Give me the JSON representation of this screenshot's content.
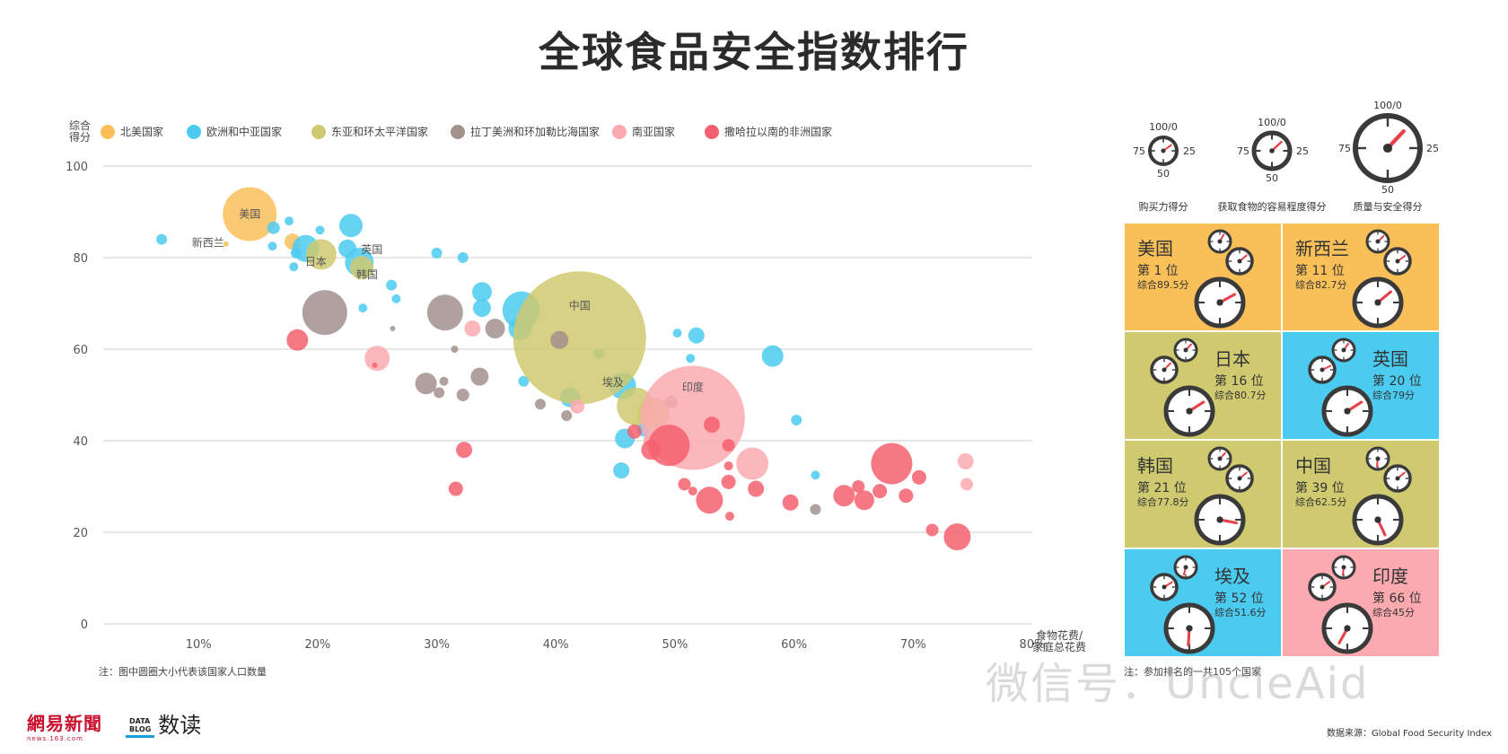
{
  "title": "全球食品安全指数排行",
  "legend_title": "综合\n得分",
  "colors": {
    "north_america": "#f9c05a",
    "europe_central_asia": "#4ccbf0",
    "east_asia_pacific": "#cfc970",
    "latin_caribbean": "#a3918d",
    "south_asia": "#fcaab0",
    "sub_saharan": "#f4606f"
  },
  "chart_data": {
    "type": "scatter",
    "title": "全球食品安全指数排行",
    "xlabel": "食物花费/\n家庭总花费",
    "ylabel": "综合\n得分",
    "xlim": [
      2,
      80
    ],
    "ylim": [
      0,
      100
    ],
    "x_ticks": [
      "10%",
      "20%",
      "30%",
      "40%",
      "50%",
      "60%",
      "70%",
      "80%"
    ],
    "x_tick_values": [
      10,
      20,
      30,
      40,
      50,
      60,
      70,
      80
    ],
    "y_ticks": [
      "0",
      "20",
      "40",
      "60",
      "80",
      "100"
    ],
    "y_tick_values": [
      0,
      20,
      40,
      60,
      80,
      100
    ],
    "grid": true,
    "legend_position": "top",
    "size_meaning": "population",
    "series": [
      {
        "name": "北美国家",
        "color": "#f9c05a",
        "points": [
          {
            "x": 14.3,
            "y": 89.5,
            "r": 30,
            "label": "美国"
          },
          {
            "x": 17.9,
            "y": 83.5,
            "r": 9
          },
          {
            "x": 12.3,
            "y": 83,
            "r": 3
          }
        ]
      },
      {
        "name": "欧洲和中亚国家",
        "color": "#4ccbf0",
        "points": [
          {
            "x": 19.0,
            "y": 82,
            "r": 15
          },
          {
            "x": 22.8,
            "y": 87,
            "r": 13
          },
          {
            "x": 23.5,
            "y": 79,
            "r": 16,
            "label": "英国"
          },
          {
            "x": 22.5,
            "y": 82,
            "r": 10
          },
          {
            "x": 16.3,
            "y": 86.5,
            "r": 7
          },
          {
            "x": 17.6,
            "y": 88,
            "r": 5
          },
          {
            "x": 20.2,
            "y": 86,
            "r": 5
          },
          {
            "x": 18.2,
            "y": 81,
            "r": 6
          },
          {
            "x": 6.9,
            "y": 84,
            "r": 6
          },
          {
            "x": 16.2,
            "y": 82.5,
            "r": 5
          },
          {
            "x": 18.0,
            "y": 78,
            "r": 5
          },
          {
            "x": 23.8,
            "y": 69,
            "r": 5
          },
          {
            "x": 26.2,
            "y": 74,
            "r": 6
          },
          {
            "x": 26.6,
            "y": 71,
            "r": 5
          },
          {
            "x": 30.0,
            "y": 81,
            "r": 6
          },
          {
            "x": 32.2,
            "y": 80,
            "r": 6
          },
          {
            "x": 33.8,
            "y": 72.5,
            "r": 11
          },
          {
            "x": 33.8,
            "y": 69,
            "r": 10
          },
          {
            "x": 37.1,
            "y": 68.5,
            "r": 21
          },
          {
            "x": 37.0,
            "y": 64.5,
            "r": 13
          },
          {
            "x": 37.3,
            "y": 53,
            "r": 6
          },
          {
            "x": 41.2,
            "y": 49.5,
            "r": 11
          },
          {
            "x": 43.6,
            "y": 59,
            "r": 6
          },
          {
            "x": 45.6,
            "y": 52,
            "r": 15
          },
          {
            "x": 45.8,
            "y": 40.5,
            "r": 11
          },
          {
            "x": 45.5,
            "y": 33.5,
            "r": 9
          },
          {
            "x": 47.4,
            "y": 42.5,
            "r": 8
          },
          {
            "x": 50.2,
            "y": 63.5,
            "r": 5
          },
          {
            "x": 51.3,
            "y": 58,
            "r": 5
          },
          {
            "x": 51.8,
            "y": 63,
            "r": 9
          },
          {
            "x": 58.2,
            "y": 58.5,
            "r": 12
          },
          {
            "x": 60.2,
            "y": 44.5,
            "r": 6
          },
          {
            "x": 61.8,
            "y": 32.5,
            "r": 5
          }
        ]
      },
      {
        "name": "东亚和环太平洋国家",
        "color": "#cfc970",
        "points": [
          {
            "x": 42.0,
            "y": 62.5,
            "r": 74,
            "label": "中国"
          },
          {
            "x": 20.3,
            "y": 80.7,
            "r": 17,
            "label": "日本"
          },
          {
            "x": 23.7,
            "y": 77.8,
            "r": 13,
            "label": "韩国"
          },
          {
            "x": 46.7,
            "y": 47.5,
            "r": 21
          },
          {
            "x": 48.2,
            "y": 46,
            "r": 18
          }
        ]
      },
      {
        "name": "拉丁美洲和环加勒比海国家",
        "color": "#a3918d",
        "points": [
          {
            "x": 20.6,
            "y": 68,
            "r": 25
          },
          {
            "x": 30.7,
            "y": 68,
            "r": 20
          },
          {
            "x": 34.9,
            "y": 64.5,
            "r": 11
          },
          {
            "x": 40.3,
            "y": 62,
            "r": 10
          },
          {
            "x": 29.1,
            "y": 52.5,
            "r": 12
          },
          {
            "x": 32.2,
            "y": 50,
            "r": 7
          },
          {
            "x": 30.2,
            "y": 50.5,
            "r": 6
          },
          {
            "x": 33.6,
            "y": 54,
            "r": 10
          },
          {
            "x": 38.7,
            "y": 48,
            "r": 6
          },
          {
            "x": 40.9,
            "y": 45.5,
            "r": 6
          },
          {
            "x": 30.6,
            "y": 53,
            "r": 5
          },
          {
            "x": 31.5,
            "y": 60,
            "r": 4
          },
          {
            "x": 26.3,
            "y": 64.5,
            "r": 3
          },
          {
            "x": 49.7,
            "y": 48.5,
            "r": 7
          },
          {
            "x": 61.8,
            "y": 25,
            "r": 6
          }
        ]
      },
      {
        "name": "南亚国家",
        "color": "#fcaab0",
        "points": [
          {
            "x": 51.5,
            "y": 45,
            "r": 58,
            "label": "印度"
          },
          {
            "x": 56.5,
            "y": 35,
            "r": 18
          },
          {
            "x": 25.0,
            "y": 58,
            "r": 14
          },
          {
            "x": 33.0,
            "y": 64.5,
            "r": 9
          },
          {
            "x": 41.8,
            "y": 47.5,
            "r": 8
          },
          {
            "x": 74.4,
            "y": 35.5,
            "r": 9
          },
          {
            "x": 74.5,
            "y": 30.5,
            "r": 7
          },
          {
            "x": 47.8,
            "y": 40,
            "r": 6
          }
        ]
      },
      {
        "name": "撒哈拉以南的非洲国家",
        "color": "#f4606f",
        "points": [
          {
            "x": 49.5,
            "y": 39,
            "r": 23
          },
          {
            "x": 48.0,
            "y": 38,
            "r": 11
          },
          {
            "x": 46.6,
            "y": 42,
            "r": 8
          },
          {
            "x": 53.1,
            "y": 43.5,
            "r": 9
          },
          {
            "x": 54.5,
            "y": 39,
            "r": 7
          },
          {
            "x": 54.5,
            "y": 34.5,
            "r": 5
          },
          {
            "x": 54.5,
            "y": 31,
            "r": 8
          },
          {
            "x": 52.9,
            "y": 27,
            "r": 15
          },
          {
            "x": 50.8,
            "y": 30.5,
            "r": 7
          },
          {
            "x": 51.5,
            "y": 29,
            "r": 5
          },
          {
            "x": 54.6,
            "y": 23.5,
            "r": 5
          },
          {
            "x": 56.8,
            "y": 29.5,
            "r": 9
          },
          {
            "x": 59.7,
            "y": 26.5,
            "r": 9
          },
          {
            "x": 64.2,
            "y": 28,
            "r": 12
          },
          {
            "x": 65.4,
            "y": 30,
            "r": 7
          },
          {
            "x": 65.9,
            "y": 27,
            "r": 11
          },
          {
            "x": 67.2,
            "y": 29,
            "r": 8
          },
          {
            "x": 68.2,
            "y": 35,
            "r": 23
          },
          {
            "x": 69.4,
            "y": 28,
            "r": 8
          },
          {
            "x": 70.5,
            "y": 32,
            "r": 8
          },
          {
            "x": 71.6,
            "y": 20.5,
            "r": 7
          },
          {
            "x": 73.7,
            "y": 19,
            "r": 15
          },
          {
            "x": 32.3,
            "y": 38,
            "r": 9
          },
          {
            "x": 31.6,
            "y": 29.5,
            "r": 8
          },
          {
            "x": 18.3,
            "y": 62,
            "r": 12
          },
          {
            "x": 24.8,
            "y": 56.5,
            "r": 3
          }
        ]
      }
    ],
    "annotations": [
      "新西兰"
    ]
  },
  "nz_label": "新西兰",
  "gauge_legend": {
    "items": [
      {
        "label": "购买力得分",
        "top": "100/0",
        "right": "25",
        "bottom": "50",
        "left": "75"
      },
      {
        "label": "获取食物的容易程度得分",
        "top": "100/0",
        "right": "25",
        "bottom": "50",
        "left": "75"
      },
      {
        "label": "质量与安全得分",
        "top": "100/0",
        "right": "25",
        "bottom": "50",
        "left": "75"
      }
    ]
  },
  "countries": [
    {
      "name": "美国",
      "rank": "第 1 位",
      "score": "综合89.5分",
      "color": "#f9c05a",
      "gauges": [
        0.92,
        0.86,
        0.83
      ]
    },
    {
      "name": "新西兰",
      "rank": "第 11 位",
      "score": "综合82.7分",
      "color": "#f9c05a",
      "gauges": [
        0.87,
        0.85,
        0.86
      ]
    },
    {
      "name": "日本",
      "rank": "第 16 位",
      "score": "综合80.7分",
      "color": "#cfc970",
      "gauges": [
        0.88,
        0.88,
        0.84
      ]
    },
    {
      "name": "英国",
      "rank": "第 20 位",
      "score": "综合79分",
      "color": "#4ccbf0",
      "gauges": [
        0.9,
        0.82,
        0.84
      ]
    },
    {
      "name": "韩国",
      "rank": "第 21 位",
      "score": "综合77.8分",
      "color": "#cfc970",
      "gauges": [
        0.88,
        0.86,
        0.72
      ]
    },
    {
      "name": "中国",
      "rank": "第 39 位",
      "score": "综合62.5分",
      "color": "#cfc970",
      "gauges": [
        0.48,
        0.86,
        0.57
      ]
    },
    {
      "name": "埃及",
      "rank": "第 52 位",
      "score": "综合51.6分",
      "color": "#4ccbf0",
      "gauges": [
        0.46,
        0.84,
        0.49
      ]
    },
    {
      "name": "印度",
      "rank": "第 66 位",
      "score": "综合45分",
      "color": "#fcaab0",
      "gauges": [
        0.48,
        0.85,
        0.42
      ]
    }
  ],
  "notes": {
    "bubble_note": "注：图中圆圈大小代表该国家人口数量",
    "country_note": "注：参加排名的一共105个国家",
    "source": "数据来源：Global Food Security Index",
    "watermark": "微信号：UncleAid",
    "logo_netease": "網易新聞",
    "logo_netease_en": "news.163.com",
    "logo_datablog": "DATA\nBLOG",
    "logo_datablog_cn": "数读"
  }
}
